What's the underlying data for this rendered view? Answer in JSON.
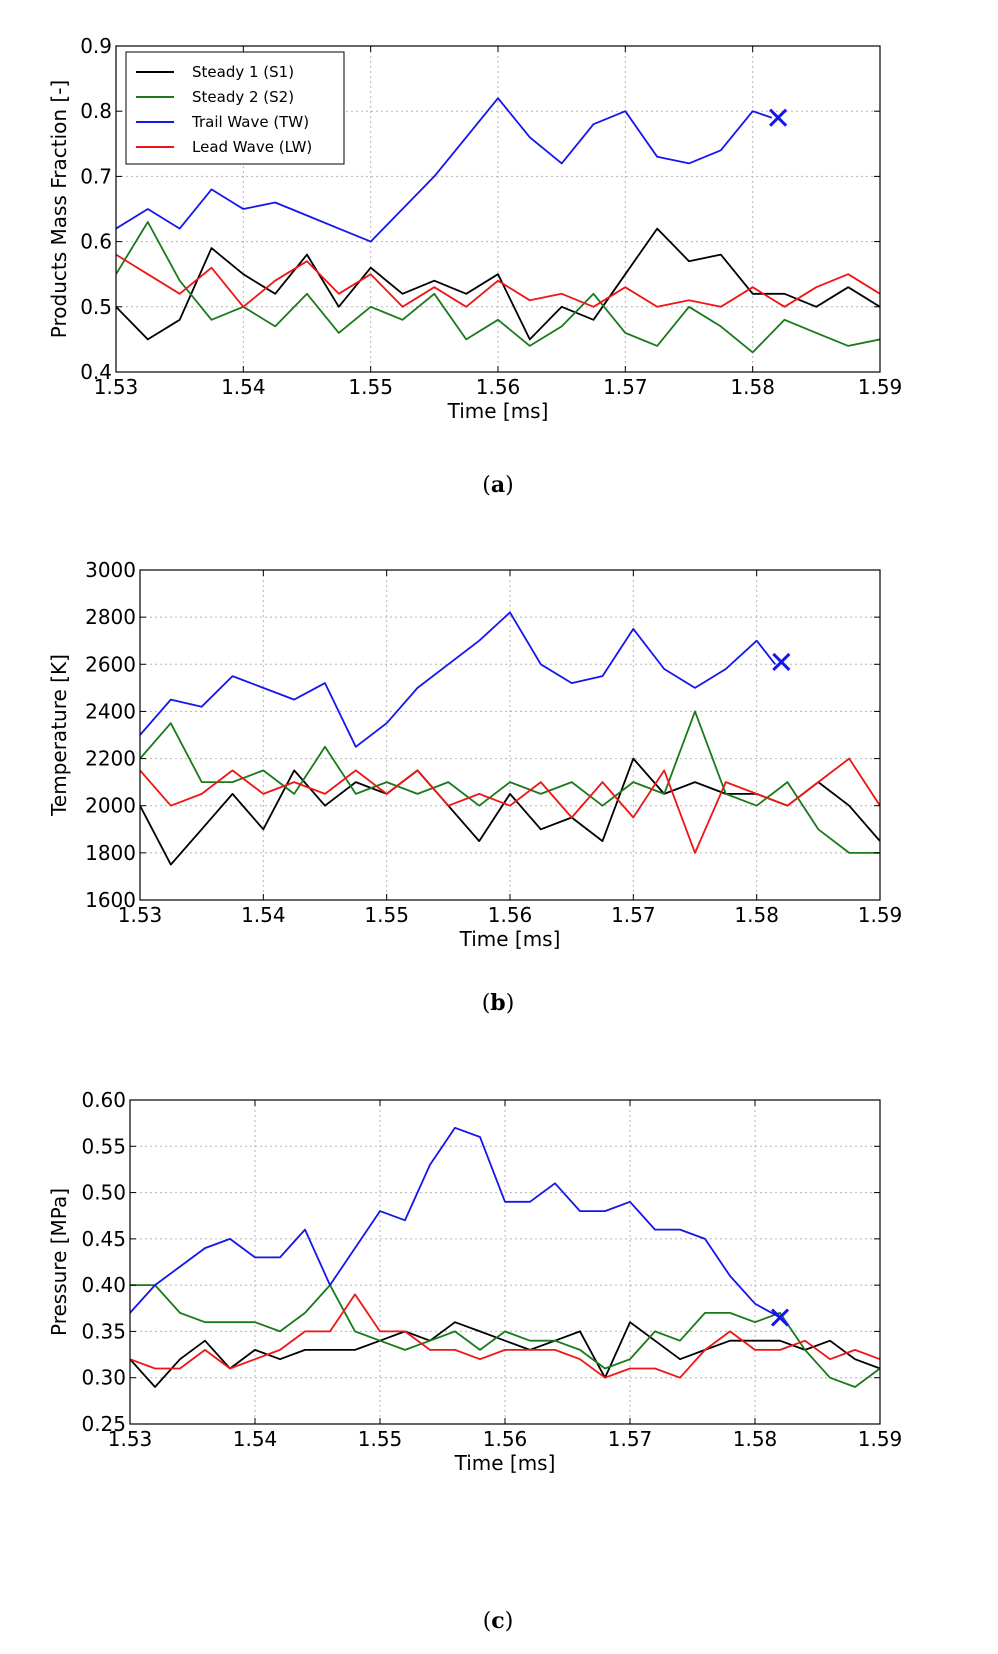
{
  "chart_data": [
    {
      "type": "line",
      "panel": "a",
      "caption_open": "(",
      "caption_letter": "a",
      "caption_close": ")",
      "xlabel": "Time [ms]",
      "ylabel": "Products Mass Fraction [-]",
      "xlim": [
        1.53,
        1.59
      ],
      "ylim": [
        0.4,
        0.9
      ],
      "xticks": [
        1.53,
        1.54,
        1.55,
        1.56,
        1.57,
        1.58,
        1.59
      ],
      "xtick_labels": [
        "1.53",
        "1.54",
        "1.55",
        "1.56",
        "1.57",
        "1.58",
        "1.59"
      ],
      "yticks": [
        0.4,
        0.5,
        0.6,
        0.7,
        0.8,
        0.9
      ],
      "ytick_labels": [
        "0.4",
        "0.5",
        "0.6",
        "0.7",
        "0.8",
        "0.9"
      ],
      "grid": true,
      "legend": [
        "Steady 1 (S1)",
        "Steady 2 (S2)",
        "Trail Wave (TW)",
        "Lead Wave (LW)"
      ],
      "legend_position": "top-left",
      "series": [
        {
          "name": "Steady 1 (S1)",
          "color": "#000000",
          "x": [
            1.53,
            1.5325,
            1.535,
            1.5375,
            1.54,
            1.5425,
            1.545,
            1.5475,
            1.55,
            1.5525,
            1.555,
            1.5575,
            1.56,
            1.5625,
            1.565,
            1.5675,
            1.57,
            1.5725,
            1.575,
            1.5775,
            1.58,
            1.5825,
            1.585,
            1.5875,
            1.59
          ],
          "values": [
            0.5,
            0.45,
            0.48,
            0.59,
            0.55,
            0.52,
            0.58,
            0.5,
            0.56,
            0.52,
            0.54,
            0.52,
            0.55,
            0.45,
            0.5,
            0.48,
            0.55,
            0.62,
            0.57,
            0.58,
            0.52,
            0.52,
            0.5,
            0.53,
            0.5
          ]
        },
        {
          "name": "Steady 2 (S2)",
          "color": "#1a7a1a",
          "x": [
            1.53,
            1.5325,
            1.535,
            1.5375,
            1.54,
            1.5425,
            1.545,
            1.5475,
            1.55,
            1.5525,
            1.555,
            1.5575,
            1.56,
            1.5625,
            1.565,
            1.5675,
            1.57,
            1.5725,
            1.575,
            1.5775,
            1.58,
            1.5825,
            1.585,
            1.5875,
            1.59
          ],
          "values": [
            0.55,
            0.63,
            0.54,
            0.48,
            0.5,
            0.47,
            0.52,
            0.46,
            0.5,
            0.48,
            0.52,
            0.45,
            0.48,
            0.44,
            0.47,
            0.52,
            0.46,
            0.44,
            0.5,
            0.47,
            0.43,
            0.48,
            0.46,
            0.44,
            0.45
          ]
        },
        {
          "name": "Trail Wave (TW)",
          "color": "#1515ee",
          "x": [
            1.53,
            1.5325,
            1.535,
            1.5375,
            1.54,
            1.5425,
            1.545,
            1.5475,
            1.55,
            1.5525,
            1.555,
            1.5575,
            1.56,
            1.5625,
            1.565,
            1.5675,
            1.57,
            1.5725,
            1.575,
            1.5775,
            1.58,
            1.5815
          ],
          "values": [
            0.62,
            0.65,
            0.62,
            0.68,
            0.65,
            0.66,
            0.64,
            0.62,
            0.6,
            0.65,
            0.7,
            0.76,
            0.82,
            0.76,
            0.72,
            0.78,
            0.8,
            0.73,
            0.72,
            0.74,
            0.8,
            0.79
          ]
        },
        {
          "name": "Lead Wave (LW)",
          "color": "#ee1515",
          "x": [
            1.53,
            1.5325,
            1.535,
            1.5375,
            1.54,
            1.5425,
            1.545,
            1.5475,
            1.55,
            1.5525,
            1.555,
            1.5575,
            1.56,
            1.5625,
            1.565,
            1.5675,
            1.57,
            1.5725,
            1.575,
            1.5775,
            1.58,
            1.5825,
            1.585,
            1.5875,
            1.59
          ],
          "values": [
            0.58,
            0.55,
            0.52,
            0.56,
            0.5,
            0.54,
            0.57,
            0.52,
            0.55,
            0.5,
            0.53,
            0.5,
            0.54,
            0.51,
            0.52,
            0.5,
            0.53,
            0.5,
            0.51,
            0.5,
            0.53,
            0.5,
            0.53,
            0.55,
            0.52
          ]
        }
      ],
      "end_marker": {
        "series": "Trail Wave (TW)",
        "x": 1.582,
        "y": 0.79,
        "symbol": "x"
      }
    },
    {
      "type": "line",
      "panel": "b",
      "caption_open": "(",
      "caption_letter": "b",
      "caption_close": ")",
      "xlabel": "Time [ms]",
      "ylabel": "Temperature [K]",
      "xlim": [
        1.53,
        1.59
      ],
      "ylim": [
        1600,
        3000
      ],
      "xticks": [
        1.53,
        1.54,
        1.55,
        1.56,
        1.57,
        1.58,
        1.59
      ],
      "xtick_labels": [
        "1.53",
        "1.54",
        "1.55",
        "1.56",
        "1.57",
        "1.58",
        "1.59"
      ],
      "yticks": [
        1600,
        1800,
        2000,
        2200,
        2400,
        2600,
        2800,
        3000
      ],
      "ytick_labels": [
        "1600",
        "1800",
        "2000",
        "2200",
        "2400",
        "2600",
        "2800",
        "3000"
      ],
      "grid": true,
      "series": [
        {
          "name": "Steady 1 (S1)",
          "color": "#000000",
          "x": [
            1.53,
            1.5325,
            1.535,
            1.5375,
            1.54,
            1.5425,
            1.545,
            1.5475,
            1.55,
            1.5525,
            1.555,
            1.5575,
            1.56,
            1.5625,
            1.565,
            1.5675,
            1.57,
            1.5725,
            1.575,
            1.5775,
            1.58,
            1.5825,
            1.585,
            1.5875,
            1.59
          ],
          "values": [
            2000,
            1750,
            1900,
            2050,
            1900,
            2150,
            2000,
            2100,
            2050,
            2150,
            2000,
            1850,
            2050,
            1900,
            1950,
            1850,
            2200,
            2050,
            2100,
            2050,
            2050,
            2000,
            2100,
            2000,
            1850
          ]
        },
        {
          "name": "Steady 2 (S2)",
          "color": "#1a7a1a",
          "x": [
            1.53,
            1.5325,
            1.535,
            1.5375,
            1.54,
            1.5425,
            1.545,
            1.5475,
            1.55,
            1.5525,
            1.555,
            1.5575,
            1.56,
            1.5625,
            1.565,
            1.5675,
            1.57,
            1.5725,
            1.575,
            1.5775,
            1.58,
            1.5825,
            1.585,
            1.5875,
            1.59
          ],
          "values": [
            2200,
            2350,
            2100,
            2100,
            2150,
            2050,
            2250,
            2050,
            2100,
            2050,
            2100,
            2000,
            2100,
            2050,
            2100,
            2000,
            2100,
            2050,
            2400,
            2050,
            2000,
            2100,
            1900,
            1800,
            1800
          ]
        },
        {
          "name": "Trail Wave (TW)",
          "color": "#1515ee",
          "x": [
            1.53,
            1.5325,
            1.535,
            1.5375,
            1.54,
            1.5425,
            1.545,
            1.5475,
            1.55,
            1.5525,
            1.555,
            1.5575,
            1.56,
            1.5625,
            1.565,
            1.5675,
            1.57,
            1.5725,
            1.575,
            1.5775,
            1.58,
            1.5815
          ],
          "values": [
            2300,
            2450,
            2420,
            2550,
            2500,
            2450,
            2520,
            2250,
            2350,
            2500,
            2600,
            2700,
            2820,
            2600,
            2520,
            2550,
            2750,
            2580,
            2500,
            2580,
            2700,
            2600
          ]
        },
        {
          "name": "Lead Wave (LW)",
          "color": "#ee1515",
          "x": [
            1.53,
            1.5325,
            1.535,
            1.5375,
            1.54,
            1.5425,
            1.545,
            1.5475,
            1.55,
            1.5525,
            1.555,
            1.5575,
            1.56,
            1.5625,
            1.565,
            1.5675,
            1.57,
            1.5725,
            1.575,
            1.5775,
            1.58,
            1.5825,
            1.585,
            1.5875,
            1.59
          ],
          "values": [
            2150,
            2000,
            2050,
            2150,
            2050,
            2100,
            2050,
            2150,
            2050,
            2150,
            2000,
            2050,
            2000,
            2100,
            1950,
            2100,
            1950,
            2150,
            1800,
            2100,
            2050,
            2000,
            2100,
            2200,
            2000
          ]
        }
      ],
      "end_marker": {
        "series": "Trail Wave (TW)",
        "x": 1.582,
        "y": 2610,
        "symbol": "x"
      }
    },
    {
      "type": "line",
      "panel": "c",
      "caption_open": "(",
      "caption_letter": "c",
      "caption_close": ")",
      "xlabel": "Time [ms]",
      "ylabel": "Pressure [MPa]",
      "xlim": [
        1.53,
        1.59
      ],
      "ylim": [
        0.25,
        0.6
      ],
      "xticks": [
        1.53,
        1.54,
        1.55,
        1.56,
        1.57,
        1.58,
        1.59
      ],
      "xtick_labels": [
        "1.53",
        "1.54",
        "1.55",
        "1.56",
        "1.57",
        "1.58",
        "1.59"
      ],
      "yticks": [
        0.25,
        0.3,
        0.35,
        0.4,
        0.45,
        0.5,
        0.55,
        0.6
      ],
      "ytick_labels": [
        "0.25",
        "0.30",
        "0.35",
        "0.40",
        "0.45",
        "0.50",
        "0.55",
        "0.60"
      ],
      "grid": true,
      "series": [
        {
          "name": "Steady 1 (S1)",
          "color": "#000000",
          "x": [
            1.53,
            1.532,
            1.534,
            1.536,
            1.538,
            1.54,
            1.542,
            1.544,
            1.546,
            1.548,
            1.55,
            1.552,
            1.554,
            1.556,
            1.558,
            1.56,
            1.562,
            1.564,
            1.566,
            1.568,
            1.57,
            1.572,
            1.574,
            1.576,
            1.578,
            1.58,
            1.582,
            1.584,
            1.586,
            1.588,
            1.59
          ],
          "values": [
            0.32,
            0.29,
            0.32,
            0.34,
            0.31,
            0.33,
            0.32,
            0.33,
            0.33,
            0.33,
            0.34,
            0.35,
            0.34,
            0.36,
            0.35,
            0.34,
            0.33,
            0.34,
            0.35,
            0.3,
            0.36,
            0.34,
            0.32,
            0.33,
            0.34,
            0.34,
            0.34,
            0.33,
            0.34,
            0.32,
            0.31
          ]
        },
        {
          "name": "Steady 2 (S2)",
          "color": "#1a7a1a",
          "x": [
            1.53,
            1.532,
            1.534,
            1.536,
            1.538,
            1.54,
            1.542,
            1.544,
            1.546,
            1.548,
            1.55,
            1.552,
            1.554,
            1.556,
            1.558,
            1.56,
            1.562,
            1.564,
            1.566,
            1.568,
            1.57,
            1.572,
            1.574,
            1.576,
            1.578,
            1.58,
            1.582,
            1.584,
            1.586,
            1.588,
            1.59
          ],
          "values": [
            0.4,
            0.4,
            0.37,
            0.36,
            0.36,
            0.36,
            0.35,
            0.37,
            0.4,
            0.35,
            0.34,
            0.33,
            0.34,
            0.35,
            0.33,
            0.35,
            0.34,
            0.34,
            0.33,
            0.31,
            0.32,
            0.35,
            0.34,
            0.37,
            0.37,
            0.36,
            0.37,
            0.33,
            0.3,
            0.29,
            0.31
          ]
        },
        {
          "name": "Trail Wave (TW)",
          "color": "#1515ee",
          "x": [
            1.53,
            1.532,
            1.534,
            1.536,
            1.538,
            1.54,
            1.542,
            1.544,
            1.546,
            1.548,
            1.55,
            1.552,
            1.554,
            1.556,
            1.558,
            1.56,
            1.562,
            1.564,
            1.566,
            1.568,
            1.57,
            1.572,
            1.574,
            1.576,
            1.578,
            1.58,
            1.582
          ],
          "values": [
            0.37,
            0.4,
            0.42,
            0.44,
            0.45,
            0.43,
            0.43,
            0.46,
            0.4,
            0.44,
            0.48,
            0.47,
            0.53,
            0.57,
            0.56,
            0.49,
            0.49,
            0.51,
            0.48,
            0.48,
            0.49,
            0.46,
            0.46,
            0.45,
            0.41,
            0.38,
            0.365
          ]
        },
        {
          "name": "Lead Wave (LW)",
          "color": "#ee1515",
          "x": [
            1.53,
            1.532,
            1.534,
            1.536,
            1.538,
            1.54,
            1.542,
            1.544,
            1.546,
            1.548,
            1.55,
            1.552,
            1.554,
            1.556,
            1.558,
            1.56,
            1.562,
            1.564,
            1.566,
            1.568,
            1.57,
            1.572,
            1.574,
            1.576,
            1.578,
            1.58,
            1.582,
            1.584,
            1.586,
            1.588,
            1.59
          ],
          "values": [
            0.32,
            0.31,
            0.31,
            0.33,
            0.31,
            0.32,
            0.33,
            0.35,
            0.35,
            0.39,
            0.35,
            0.35,
            0.33,
            0.33,
            0.32,
            0.33,
            0.33,
            0.33,
            0.32,
            0.3,
            0.31,
            0.31,
            0.3,
            0.33,
            0.35,
            0.33,
            0.33,
            0.34,
            0.32,
            0.33,
            0.32
          ]
        }
      ],
      "end_marker": {
        "series": "Trail Wave (TW)",
        "x": 1.582,
        "y": 0.365,
        "symbol": "x"
      }
    }
  ]
}
